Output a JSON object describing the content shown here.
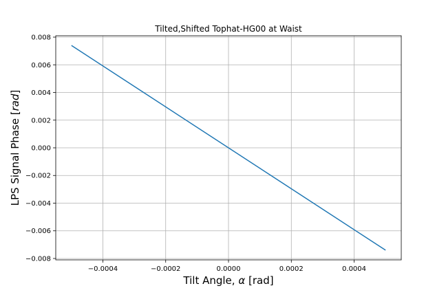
{
  "chart_data": {
    "type": "line",
    "title": "Tilted,Shifted Tophat-HG00 at Waist",
    "xlabel": "Tilt Angle, α [rad]",
    "ylabel": "LPS Signal Phase [rad]",
    "xlim": [
      -0.00055,
      0.00055
    ],
    "ylim": [
      -0.0081,
      0.0081
    ],
    "grid": true,
    "xticks": [
      -0.0004,
      -0.0002,
      0.0,
      0.0002,
      0.0004
    ],
    "xtick_labels": [
      "−0.0004",
      "−0.0002",
      "0.0000",
      "0.0002",
      "0.0004"
    ],
    "yticks": [
      -0.008,
      -0.006,
      -0.004,
      -0.002,
      0.0,
      0.002,
      0.004,
      0.006,
      0.008
    ],
    "ytick_labels": [
      "−0.008",
      "−0.006",
      "−0.004",
      "−0.002",
      "0.000",
      "0.002",
      "0.004",
      "0.006",
      "0.008"
    ],
    "series": [
      {
        "color": "#1f77b4",
        "x": [
          -0.0005,
          0.0005
        ],
        "y": [
          0.0074,
          -0.0074
        ]
      }
    ]
  }
}
